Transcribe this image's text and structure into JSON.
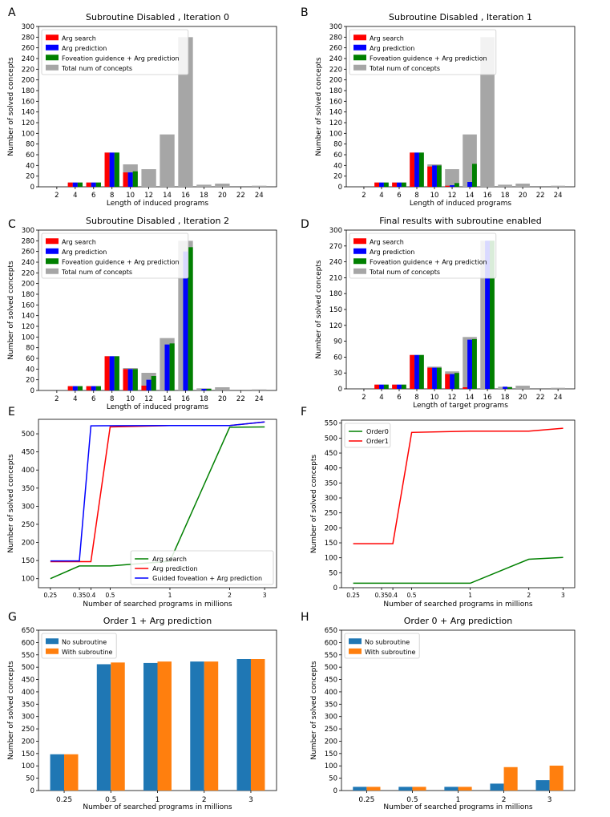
{
  "chart_data": [
    {
      "panel": "A",
      "type": "bar",
      "title": "Subroutine Disabled , Iteration 0",
      "xlabel": "Length of induced programs",
      "ylabel": "Number of solved concepts",
      "ylim": [
        0,
        300
      ],
      "yticks": [
        0,
        20,
        40,
        60,
        80,
        100,
        120,
        140,
        160,
        180,
        200,
        220,
        240,
        260,
        280,
        300
      ],
      "categories": [
        "2",
        "4",
        "6",
        "8",
        "10",
        "12",
        "14",
        "16",
        "18",
        "20",
        "22",
        "24"
      ],
      "legend": "top-left",
      "series": [
        {
          "name": "Total num of concepts",
          "color": "#a6a6a6",
          "role": "total",
          "values": [
            0,
            8,
            8,
            64,
            42,
            33,
            98,
            280,
            4,
            6,
            0,
            2
          ]
        },
        {
          "name": "Arg search",
          "color": "#ff0000",
          "values": [
            0,
            8,
            8,
            64,
            27,
            0,
            0,
            0,
            0,
            0,
            0,
            0
          ]
        },
        {
          "name": "Arg prediction",
          "color": "#0000ff",
          "values": [
            0,
            8,
            8,
            64,
            27,
            0,
            0,
            0,
            0,
            0,
            0,
            0
          ]
        },
        {
          "name": "Foveation guidence + Arg prediction",
          "color": "#008000",
          "values": [
            0,
            8,
            8,
            64,
            29,
            0,
            0,
            0,
            0,
            0,
            0,
            0
          ]
        }
      ]
    },
    {
      "panel": "B",
      "type": "bar",
      "title": "Subroutine Disabled , Iteration 1",
      "xlabel": "Length of induced programs",
      "ylabel": "Number of solved concepts",
      "ylim": [
        0,
        300
      ],
      "yticks": [
        0,
        20,
        40,
        60,
        80,
        100,
        120,
        140,
        160,
        180,
        200,
        220,
        240,
        260,
        280,
        300
      ],
      "categories": [
        "2",
        "4",
        "6",
        "8",
        "10",
        "12",
        "14",
        "16",
        "18",
        "20",
        "22",
        "24"
      ],
      "legend": "top-left",
      "series": [
        {
          "name": "Total num of concepts",
          "color": "#a6a6a6",
          "role": "total",
          "values": [
            0,
            8,
            8,
            64,
            42,
            33,
            98,
            280,
            4,
            6,
            0,
            2
          ]
        },
        {
          "name": "Arg search",
          "color": "#ff0000",
          "values": [
            0,
            8,
            8,
            64,
            38,
            2,
            0,
            0,
            0,
            0,
            0,
            0
          ]
        },
        {
          "name": "Arg prediction",
          "color": "#0000ff",
          "values": [
            0,
            8,
            8,
            64,
            40,
            3,
            9,
            0,
            0,
            0,
            0,
            0
          ]
        },
        {
          "name": "Foveation guidence + Arg prediction",
          "color": "#008000",
          "values": [
            0,
            8,
            8,
            64,
            40,
            7,
            43,
            0,
            0,
            0,
            0,
            0
          ]
        }
      ]
    },
    {
      "panel": "C",
      "type": "bar",
      "title": "Subroutine Disabled , Iteration 2",
      "xlabel": "Length of induced programs",
      "ylabel": "Number of solved concepts",
      "ylim": [
        0,
        300
      ],
      "yticks": [
        0,
        20,
        40,
        60,
        80,
        100,
        120,
        140,
        160,
        180,
        200,
        220,
        240,
        260,
        280,
        300
      ],
      "categories": [
        "2",
        "4",
        "6",
        "8",
        "10",
        "12",
        "14",
        "16",
        "18",
        "20",
        "22",
        "24"
      ],
      "legend": "top-left",
      "series": [
        {
          "name": "Total num of concepts",
          "color": "#a6a6a6",
          "role": "total",
          "values": [
            0,
            8,
            8,
            64,
            42,
            33,
            98,
            280,
            4,
            6,
            0,
            2
          ]
        },
        {
          "name": "Arg search",
          "color": "#ff0000",
          "values": [
            0,
            8,
            8,
            64,
            40,
            9,
            0,
            0,
            0,
            0,
            0,
            0
          ]
        },
        {
          "name": "Arg prediction",
          "color": "#0000ff",
          "values": [
            0,
            8,
            8,
            64,
            40,
            20,
            86,
            260,
            3,
            0,
            0,
            0
          ]
        },
        {
          "name": "Foveation guidence + Arg prediction",
          "color": "#008000",
          "values": [
            0,
            8,
            8,
            64,
            40,
            27,
            88,
            268,
            3,
            0,
            0,
            0
          ]
        }
      ]
    },
    {
      "panel": "D",
      "type": "bar",
      "title": "Final results with subroutine enabled",
      "xlabel": "Length of target programs",
      "ylabel": "Number of solved concepts",
      "ylim": [
        0,
        300
      ],
      "yticks": [
        0,
        30,
        60,
        90,
        120,
        150,
        180,
        210,
        240,
        270,
        300
      ],
      "categories": [
        "2",
        "4",
        "6",
        "8",
        "10",
        "12",
        "14",
        "16",
        "18",
        "20",
        "22",
        "24"
      ],
      "legend": "top-left",
      "series": [
        {
          "name": "Total num of concepts",
          "color": "#a6a6a6",
          "role": "total",
          "values": [
            0,
            8,
            8,
            64,
            42,
            33,
            98,
            280,
            4,
            6,
            0,
            2
          ]
        },
        {
          "name": "Arg search",
          "color": "#ff0000",
          "values": [
            0,
            8,
            8,
            64,
            40,
            28,
            3,
            0,
            0,
            0,
            0,
            0
          ]
        },
        {
          "name": "Arg prediction",
          "color": "#0000ff",
          "values": [
            0,
            8,
            8,
            64,
            40,
            28,
            93,
            280,
            4,
            0,
            0,
            0
          ]
        },
        {
          "name": "Foveation guidence + Arg prediction",
          "color": "#008000",
          "values": [
            0,
            8,
            8,
            64,
            40,
            30,
            94,
            280,
            3,
            0,
            0,
            0
          ]
        }
      ]
    },
    {
      "panel": "E",
      "type": "line",
      "xlabel": "Number of searched programs in millions",
      "ylabel": "Number of solved concepts",
      "ylim": [
        75,
        540
      ],
      "yticks": [
        100,
        150,
        200,
        250,
        300,
        350,
        400,
        450,
        500,
        550
      ],
      "x_ticks": [
        0.25,
        0.35,
        0.4,
        0.5,
        1,
        2,
        3
      ],
      "x_tick_labels": [
        "0.25",
        "0.35",
        "0.4",
        "0.5",
        "1",
        "2",
        "3"
      ],
      "legend": "bottom-right",
      "series": [
        {
          "name": "Arg search",
          "color": "#008000",
          "x": [
            0.25,
            0.35,
            0.5,
            1,
            2,
            3
          ],
          "values": [
            100,
            135,
            135,
            148,
            518,
            519
          ]
        },
        {
          "name": "Arg prediction",
          "color": "#ff0000",
          "x": [
            0.25,
            0.4,
            0.5,
            1,
            2,
            3
          ],
          "values": [
            147,
            147,
            519,
            523,
            523,
            533
          ]
        },
        {
          "name": "Guided foveation + Arg prediction",
          "color": "#0000ff",
          "x": [
            0.25,
            0.35,
            0.4,
            1,
            2,
            3
          ],
          "values": [
            149,
            149,
            522,
            523,
            523,
            533
          ]
        }
      ]
    },
    {
      "panel": "F",
      "type": "line",
      "xlabel": "Number of searched programs in millions",
      "ylabel": "Number of solved concepts",
      "ylim": [
        0,
        560
      ],
      "yticks": [
        0,
        50,
        100,
        150,
        200,
        250,
        300,
        350,
        400,
        450,
        500,
        550
      ],
      "x_ticks": [
        0.25,
        0.35,
        0.4,
        0.5,
        1,
        2,
        3
      ],
      "x_tick_labels": [
        "0.25",
        "0.35",
        "0.4",
        "0.5",
        "1",
        "2",
        "3"
      ],
      "legend": "top-left",
      "series": [
        {
          "name": "Order0",
          "color": "#008000",
          "x": [
            0.25,
            0.35,
            0.4,
            0.5,
            1,
            2,
            3
          ],
          "values": [
            15,
            15,
            15,
            15,
            15,
            95,
            101
          ]
        },
        {
          "name": "Order1",
          "color": "#ff0000",
          "x": [
            0.25,
            0.35,
            0.4,
            0.5,
            1,
            2,
            3
          ],
          "values": [
            147,
            147,
            147,
            519,
            523,
            523,
            533
          ]
        }
      ]
    },
    {
      "panel": "G",
      "type": "bar",
      "title": "Order 1 + Arg prediction",
      "xlabel": "Number of searched programs in millions",
      "ylabel": "Number of solved concepts",
      "ylim": [
        0,
        650
      ],
      "yticks": [
        0,
        50,
        100,
        150,
        200,
        250,
        300,
        350,
        400,
        450,
        500,
        550,
        600,
        650
      ],
      "categories": [
        "0.25",
        "0.5",
        "1",
        "2",
        "3"
      ],
      "legend": "top-left",
      "series": [
        {
          "name": "No subroutine",
          "color": "#1f77b4",
          "values": [
            147,
            512,
            517,
            523,
            533
          ]
        },
        {
          "name": "With subroutine",
          "color": "#ff7f0e",
          "values": [
            147,
            519,
            523,
            523,
            533
          ]
        }
      ]
    },
    {
      "panel": "H",
      "type": "bar",
      "title": "Order 0 + Arg prediction",
      "xlabel": "Number of searched programs in millions",
      "ylabel": "Number of solved concepts",
      "ylim": [
        0,
        650
      ],
      "yticks": [
        0,
        50,
        100,
        150,
        200,
        250,
        300,
        350,
        400,
        450,
        500,
        550,
        600,
        650
      ],
      "categories": [
        "0.25",
        "0.5",
        "1",
        "2",
        "3"
      ],
      "legend": "top-left",
      "series": [
        {
          "name": "No subroutine",
          "color": "#1f77b4",
          "values": [
            15,
            15,
            15,
            28,
            42
          ]
        },
        {
          "name": "With subroutine",
          "color": "#ff7f0e",
          "values": [
            15,
            15,
            15,
            95,
            101
          ]
        }
      ]
    }
  ]
}
